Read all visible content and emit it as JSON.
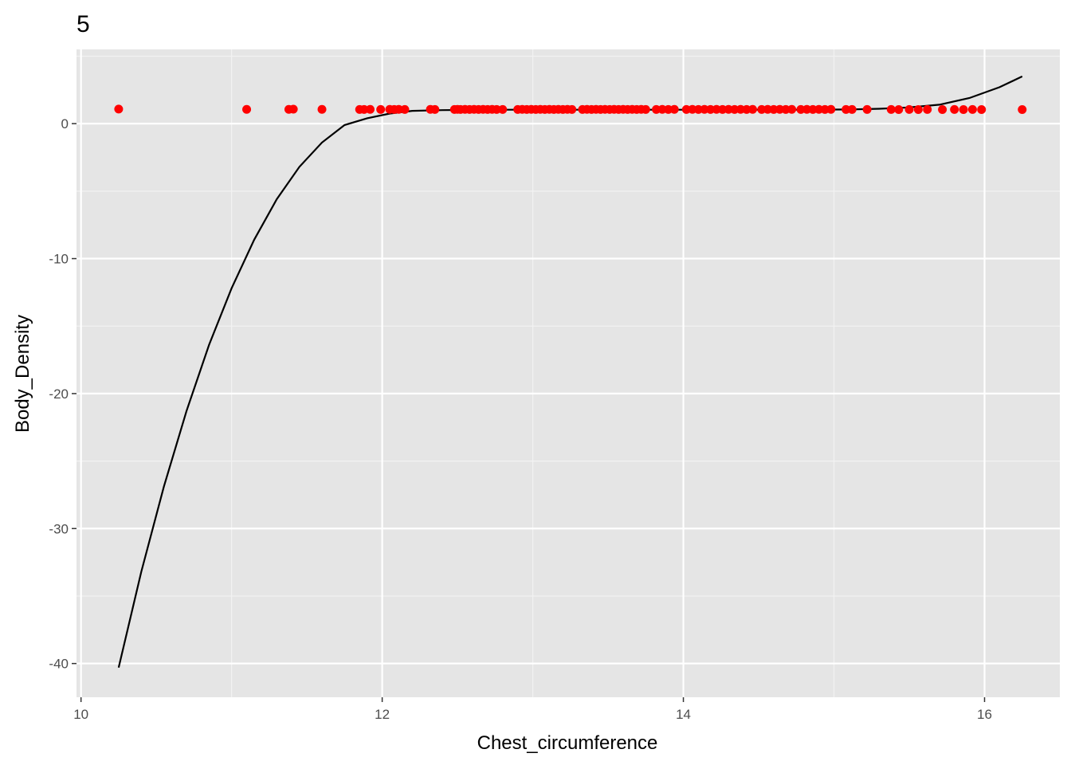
{
  "chart_data": {
    "type": "scatter",
    "title": "5",
    "xlabel": "Chest_circumference",
    "ylabel": "Body_Density",
    "xlim": [
      9.97,
      16.5
    ],
    "ylim": [
      -42.5,
      5.5
    ],
    "xticks": [
      10,
      12,
      14,
      16
    ],
    "yticks": [
      0,
      -10,
      -20,
      -30,
      -40
    ],
    "x_minor_ticks": [
      11,
      13,
      15
    ],
    "y_minor_ticks": [
      5,
      -5,
      -15,
      -25,
      -35
    ],
    "grid": true,
    "background": "#e5e5e5",
    "point_color": "#ff0000",
    "line_color": "#000000",
    "points": {
      "x": [
        10.25,
        11.1,
        11.38,
        11.41,
        11.6,
        11.85,
        11.88,
        11.92,
        11.99,
        12.05,
        12.08,
        12.11,
        12.15,
        12.32,
        12.35,
        12.48,
        12.5,
        12.52,
        12.55,
        12.58,
        12.61,
        12.64,
        12.67,
        12.7,
        12.73,
        12.76,
        12.8,
        12.9,
        12.93,
        12.96,
        12.99,
        13.02,
        13.05,
        13.08,
        13.11,
        13.14,
        13.17,
        13.2,
        13.23,
        13.26,
        13.33,
        13.36,
        13.39,
        13.42,
        13.45,
        13.48,
        13.51,
        13.54,
        13.57,
        13.6,
        13.63,
        13.66,
        13.69,
        13.72,
        13.75,
        13.82,
        13.86,
        13.9,
        13.94,
        14.02,
        14.06,
        14.1,
        14.14,
        14.18,
        14.22,
        14.26,
        14.3,
        14.34,
        14.38,
        14.42,
        14.46,
        14.52,
        14.56,
        14.6,
        14.64,
        14.68,
        14.72,
        14.78,
        14.82,
        14.86,
        14.9,
        14.94,
        14.98,
        15.08,
        15.12,
        15.22,
        15.38,
        15.43,
        15.5,
        15.56,
        15.62,
        15.72,
        15.8,
        15.86,
        15.92,
        15.98,
        16.25
      ],
      "y": [
        1.08,
        1.06,
        1.06,
        1.07,
        1.06,
        1.05,
        1.05,
        1.06,
        1.05,
        1.06,
        1.05,
        1.06,
        1.05,
        1.06,
        1.05,
        1.05,
        1.06,
        1.05,
        1.06,
        1.05,
        1.06,
        1.05,
        1.06,
        1.05,
        1.06,
        1.05,
        1.05,
        1.05,
        1.06,
        1.05,
        1.06,
        1.05,
        1.06,
        1.05,
        1.06,
        1.05,
        1.06,
        1.05,
        1.06,
        1.05,
        1.05,
        1.06,
        1.05,
        1.06,
        1.05,
        1.06,
        1.05,
        1.06,
        1.05,
        1.06,
        1.05,
        1.06,
        1.05,
        1.06,
        1.05,
        1.05,
        1.06,
        1.05,
        1.06,
        1.05,
        1.06,
        1.05,
        1.06,
        1.05,
        1.06,
        1.05,
        1.06,
        1.05,
        1.06,
        1.05,
        1.06,
        1.05,
        1.06,
        1.05,
        1.06,
        1.05,
        1.06,
        1.05,
        1.06,
        1.05,
        1.06,
        1.05,
        1.06,
        1.05,
        1.05,
        1.05,
        1.05,
        1.04,
        1.05,
        1.04,
        1.05,
        1.04,
        1.05,
        1.04,
        1.05,
        1.04,
        1.04
      ]
    },
    "fit_line": {
      "x": [
        10.25,
        10.4,
        10.55,
        10.7,
        10.85,
        11.0,
        11.15,
        11.3,
        11.45,
        11.6,
        11.75,
        11.9,
        12.05,
        12.2,
        12.4,
        12.6,
        12.8,
        13.0,
        13.3,
        13.6,
        13.9,
        14.2,
        14.5,
        14.8,
        15.1,
        15.3,
        15.5,
        15.7,
        15.9,
        16.1,
        16.25
      ],
      "y": [
        -40.3,
        -33.2,
        -26.9,
        -21.3,
        -16.4,
        -12.2,
        -8.6,
        -5.6,
        -3.2,
        -1.4,
        -0.1,
        0.4,
        0.75,
        0.95,
        1.0,
        1.02,
        1.03,
        1.03,
        1.03,
        1.03,
        1.03,
        1.03,
        1.03,
        1.03,
        1.05,
        1.1,
        1.2,
        1.4,
        1.9,
        2.7,
        3.5
      ]
    }
  }
}
